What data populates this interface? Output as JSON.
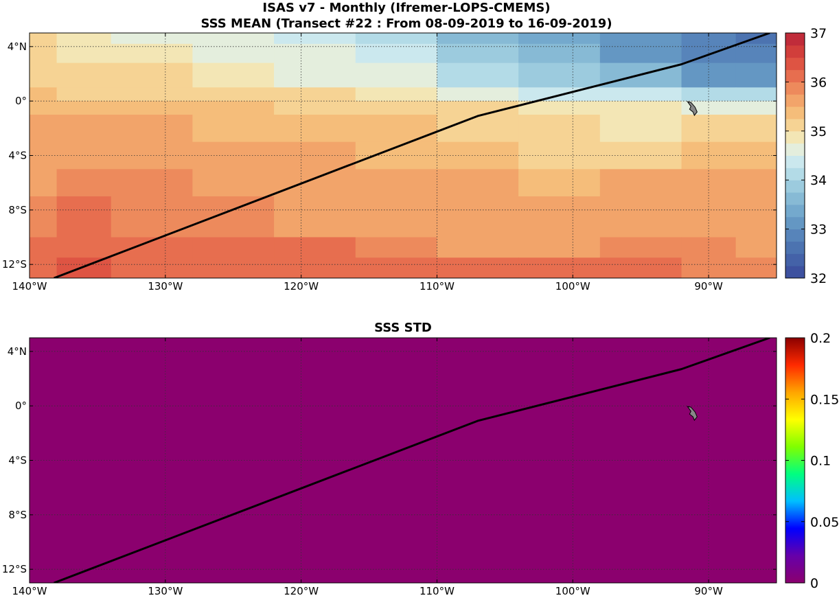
{
  "titles": {
    "line1": "ISAS v7 - Monthly (Ifremer-LOPS-CMEMS)",
    "line2": "SSS MEAN (Transect #22 : From 08-09-2019 to 16-09-2019)",
    "std": "SSS STD"
  },
  "axes": {
    "lon_min": -140,
    "lon_max": -85,
    "lat_min": -13,
    "lat_max": 5,
    "x_ticks": [
      {
        "value": -140,
        "label": "140°W"
      },
      {
        "value": -130,
        "label": "130°W"
      },
      {
        "value": -120,
        "label": "120°W"
      },
      {
        "value": -110,
        "label": "110°W"
      },
      {
        "value": -100,
        "label": "100°W"
      },
      {
        "value": -90,
        "label": "90°W"
      }
    ],
    "y_ticks": [
      {
        "value": 4,
        "label": "4°N"
      },
      {
        "value": 0,
        "label": "0°"
      },
      {
        "value": -4,
        "label": "4°S"
      },
      {
        "value": -8,
        "label": "8°S"
      },
      {
        "value": -12,
        "label": "12°S"
      }
    ]
  },
  "colorbars": {
    "mean": {
      "min": 32,
      "max": 37,
      "ticks": [
        {
          "value": 37,
          "label": "37"
        },
        {
          "value": 36,
          "label": "36"
        },
        {
          "value": 35,
          "label": "35"
        },
        {
          "value": 34,
          "label": "34"
        },
        {
          "value": 33,
          "label": "33"
        },
        {
          "value": 32,
          "label": "32"
        }
      ],
      "colors": [
        "#3d519f",
        "#4462a8",
        "#4c73b0",
        "#5784ba",
        "#6497c3",
        "#74a9cd",
        "#87bad5",
        "#9ccbde",
        "#b3dbe7",
        "#cbe8ee",
        "#e4eedd",
        "#f3e6b5",
        "#f6d394",
        "#f5bd7a",
        "#f2a46a",
        "#ed8a5c",
        "#e76e4f",
        "#de5443",
        "#d13e3b",
        "#c02c3a"
      ]
    },
    "std": {
      "min": 0,
      "max": 0.2,
      "ticks": [
        {
          "value": 0.2,
          "label": "0.2"
        },
        {
          "value": 0.15,
          "label": "0.15"
        },
        {
          "value": 0.1,
          "label": "0.1"
        },
        {
          "value": 0.05,
          "label": "0.05"
        },
        {
          "value": 0,
          "label": "0"
        }
      ],
      "stops": [
        "#8b006e",
        "#6600aa",
        "#0000ff",
        "#00bfff",
        "#00ff80",
        "#80ff00",
        "#ffff00",
        "#ffa500",
        "#ff2a00",
        "#8b0000"
      ],
      "fill": "#8b006e"
    }
  },
  "transect": {
    "lons": [
      -138.2,
      -107,
      -92,
      -85.5
    ],
    "lats": [
      -13,
      -1.1,
      2.7,
      5
    ]
  },
  "mean_field": {
    "lat_edges": [
      5,
      4.2,
      2.8,
      1,
      0,
      -1,
      -3,
      -5,
      -7,
      -10,
      -11.5,
      -13
    ],
    "lon_edges": [
      -140,
      -138,
      -134,
      -128,
      -122,
      -116,
      -110,
      -104,
      -98,
      -92,
      -88,
      -85
    ],
    "values": [
      [
        35.2,
        34.8,
        34.7,
        34.6,
        34.4,
        34.1,
        33.6,
        33.3,
        33.0,
        32.9,
        32.7
      ],
      [
        35.2,
        34.9,
        34.8,
        34.7,
        34.6,
        34.3,
        33.9,
        33.5,
        33.1,
        32.9,
        32.8
      ],
      [
        35.2,
        35.1,
        35.0,
        34.9,
        34.7,
        34.5,
        34.2,
        33.8,
        33.5,
        33.2,
        33.1
      ],
      [
        35.3,
        35.2,
        35.2,
        35.1,
        35.0,
        34.8,
        34.6,
        34.4,
        34.3,
        34.2,
        34.0
      ],
      [
        35.4,
        35.4,
        35.3,
        35.3,
        35.2,
        35.1,
        35.0,
        34.9,
        34.8,
        34.7,
        34.5
      ],
      [
        35.6,
        35.6,
        35.5,
        35.4,
        35.4,
        35.3,
        35.2,
        35.0,
        34.9,
        35.0,
        35.1
      ],
      [
        35.6,
        35.6,
        35.6,
        35.6,
        35.5,
        35.4,
        35.3,
        35.2,
        35.1,
        35.3,
        35.3
      ],
      [
        35.7,
        35.9,
        35.8,
        35.7,
        35.6,
        35.6,
        35.5,
        35.4,
        35.5,
        35.5,
        35.5
      ],
      [
        35.9,
        36.0,
        35.9,
        35.8,
        35.7,
        35.6,
        35.6,
        35.6,
        35.6,
        35.6,
        35.6
      ],
      [
        36.0,
        36.1,
        36.1,
        36.0,
        36.0,
        35.9,
        35.7,
        35.7,
        35.8,
        35.8,
        35.7
      ],
      [
        36.2,
        36.3,
        36.2,
        36.2,
        36.1,
        36.0,
        36.0,
        36.0,
        36.0,
        35.9,
        35.8
      ]
    ]
  },
  "std_field": {
    "value": 0.0
  },
  "land": {
    "name": "Galapagos Islands",
    "color": "#888888"
  }
}
